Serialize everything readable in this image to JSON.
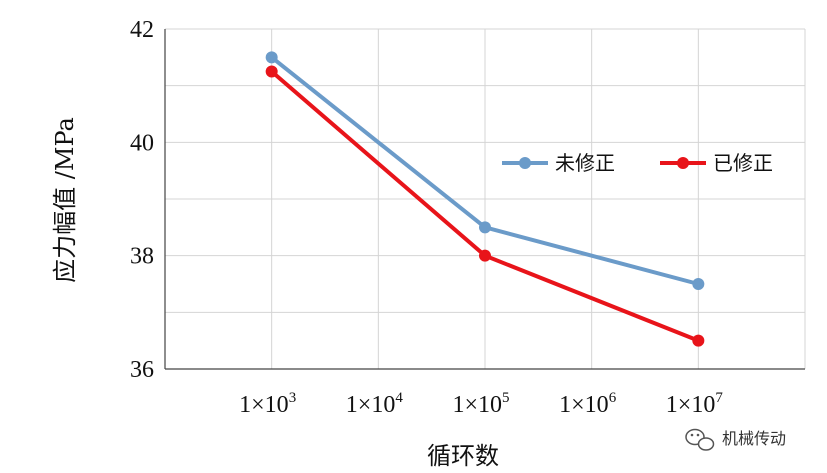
{
  "chart_data": {
    "type": "line",
    "title": "",
    "xlabel": "循环数",
    "ylabel": "应力幅值 /MPa",
    "x_scale": "log",
    "x_ticks": [
      {
        "value": 1000,
        "mant": "1×10",
        "exp": "3"
      },
      {
        "value": 10000,
        "mant": "1×10",
        "exp": "4"
      },
      {
        "value": 100000,
        "mant": "1×10",
        "exp": "5"
      },
      {
        "value": 1000000,
        "mant": "1×10",
        "exp": "6"
      },
      {
        "value": 10000000,
        "mant": "1×10",
        "exp": "7"
      }
    ],
    "xlim": [
      1000,
      10000000
    ],
    "ylim": [
      36,
      42
    ],
    "y_ticks": [
      36,
      38,
      40,
      42
    ],
    "grid": true,
    "legend_position": "right",
    "series": [
      {
        "name": "未修正",
        "color": "#6b9bc9",
        "x": [
          1000,
          100000,
          10000000
        ],
        "values": [
          41.5,
          38.5,
          37.5
        ]
      },
      {
        "name": "已修正",
        "color": "#e8141a",
        "x": [
          1000,
          100000,
          10000000
        ],
        "values": [
          41.25,
          38.0,
          36.5
        ]
      }
    ]
  },
  "watermark": {
    "text": "机械传动",
    "icon": "wechat-icon"
  }
}
